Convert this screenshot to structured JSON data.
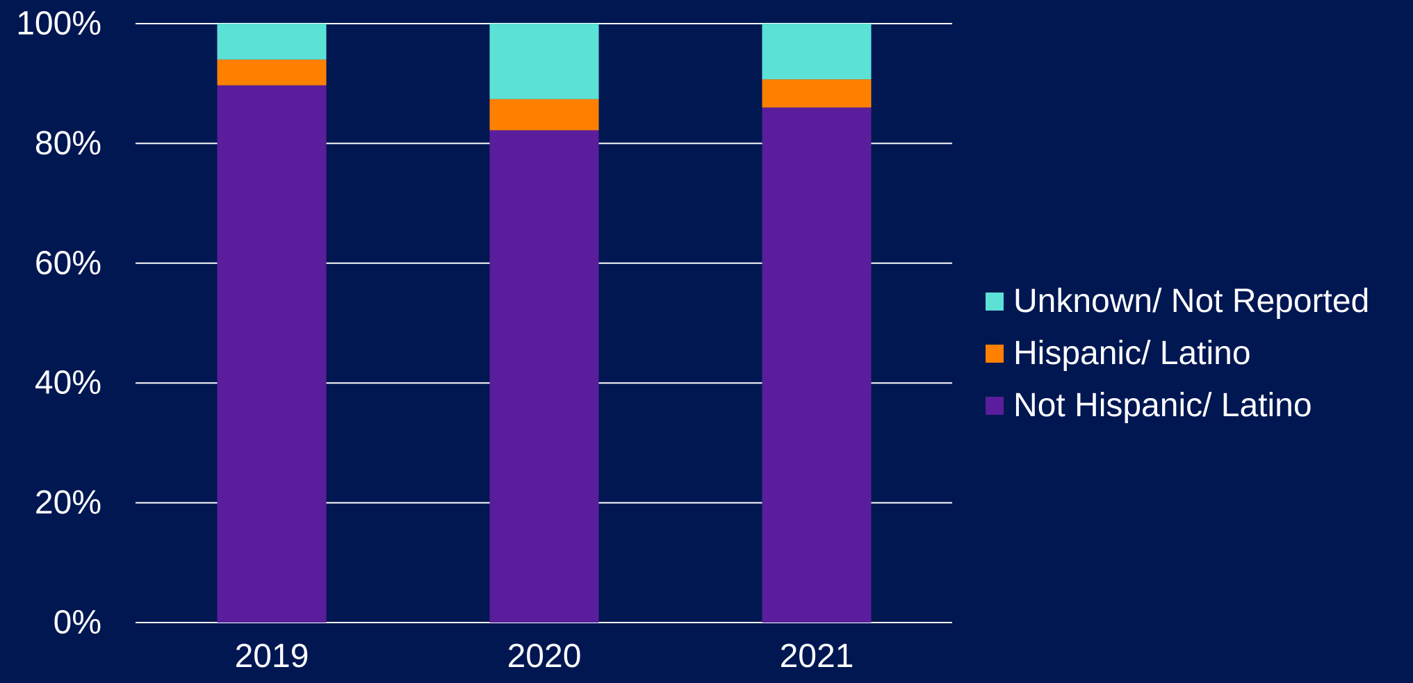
{
  "chart_data": {
    "type": "bar",
    "stacked": true,
    "categories": [
      "2019",
      "2020",
      "2021"
    ],
    "series": [
      {
        "name": "Not Hispanic/ Latino",
        "values": [
          89.7,
          82.2,
          86.0
        ],
        "color": "#5a1e9c"
      },
      {
        "name": "Hispanic/ Latino",
        "values": [
          4.3,
          5.2,
          4.7
        ],
        "color": "#ff8000"
      },
      {
        "name": "Unknown/ Not Reported",
        "values": [
          6.0,
          12.6,
          9.3
        ],
        "color": "#5ce1d6"
      }
    ],
    "yticks": [
      "0%",
      "20%",
      "40%",
      "60%",
      "80%",
      "100%"
    ],
    "ylim": [
      0,
      100
    ],
    "grid": true,
    "legend_position": "right",
    "legend_order": [
      "Unknown/ Not Reported",
      "Hispanic/ Latino",
      "Not Hispanic/ Latino"
    ],
    "background_color": "#001752",
    "gridline_color": "#ffffff",
    "text_color": "#ffffff"
  }
}
